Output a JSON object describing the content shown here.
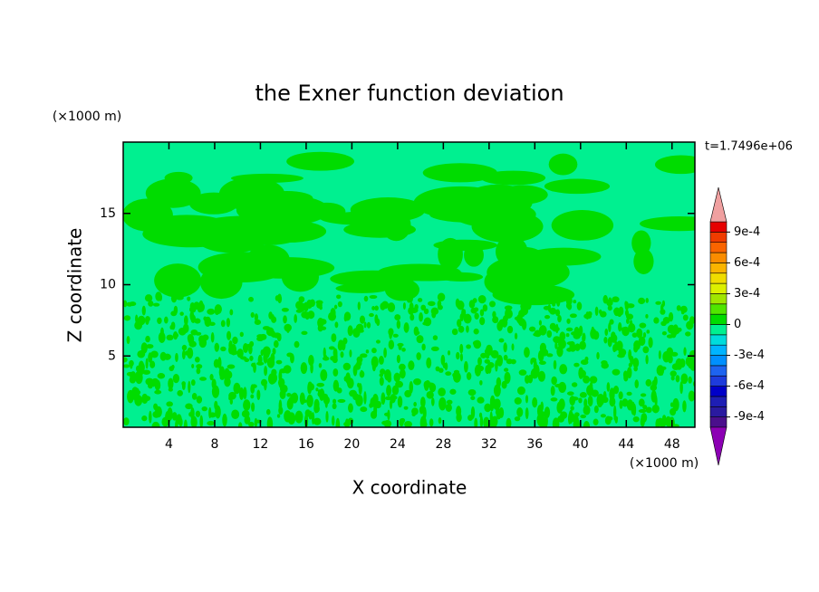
{
  "chart_data": {
    "type": "contour",
    "title": "the Exner function deviation",
    "xlabel": "X coordinate",
    "ylabel": "Z coordinate",
    "xunit": "(×1000 m)",
    "yunit": "(×1000 m)",
    "time_label": "t=1.7496e+06",
    "xlim": [
      0,
      50
    ],
    "xticks": [
      4,
      8,
      12,
      16,
      20,
      24,
      28,
      32,
      36,
      40,
      44,
      48
    ],
    "ylim": [
      0,
      20
    ],
    "yticks": [
      5,
      10,
      15
    ],
    "levels": [
      -0.001,
      -0.0009,
      -0.0008,
      -0.0007,
      -0.0006,
      -0.0005,
      -0.0004,
      -0.0003,
      -0.0002,
      -0.0001,
      0,
      0.0001,
      0.0002,
      0.0003,
      0.0004,
      0.0005,
      0.0006,
      0.0007,
      0.0008,
      0.0009,
      0.001
    ],
    "colors": [
      "#4b0f8c",
      "#2a1aa0",
      "#1e1eb4",
      "#0000c8",
      "#1e3cdc",
      "#1e64f0",
      "#0090ff",
      "#00b4ff",
      "#00dcdc",
      "#00f090",
      "#00dc00",
      "#50e600",
      "#a0e600",
      "#dcf000",
      "#f0dc00",
      "#fab400",
      "#fa8c00",
      "#fa6400",
      "#f03c00",
      "#e60000"
    ],
    "under_color": "#8c00b4",
    "over_color": "#f0a0a0",
    "colorbar_ticks": [
      {
        "value": 0.0009,
        "label": "9e-4"
      },
      {
        "value": 0.0006,
        "label": "6e-4"
      },
      {
        "value": 0.0003,
        "label": "3e-4"
      },
      0,
      {
        "value": -0.0003,
        "label": "-3e-4"
      },
      {
        "value": -0.0006,
        "label": "-6e-4"
      },
      {
        "value": -0.0009,
        "label": "-9e-4"
      }
    ]
  }
}
